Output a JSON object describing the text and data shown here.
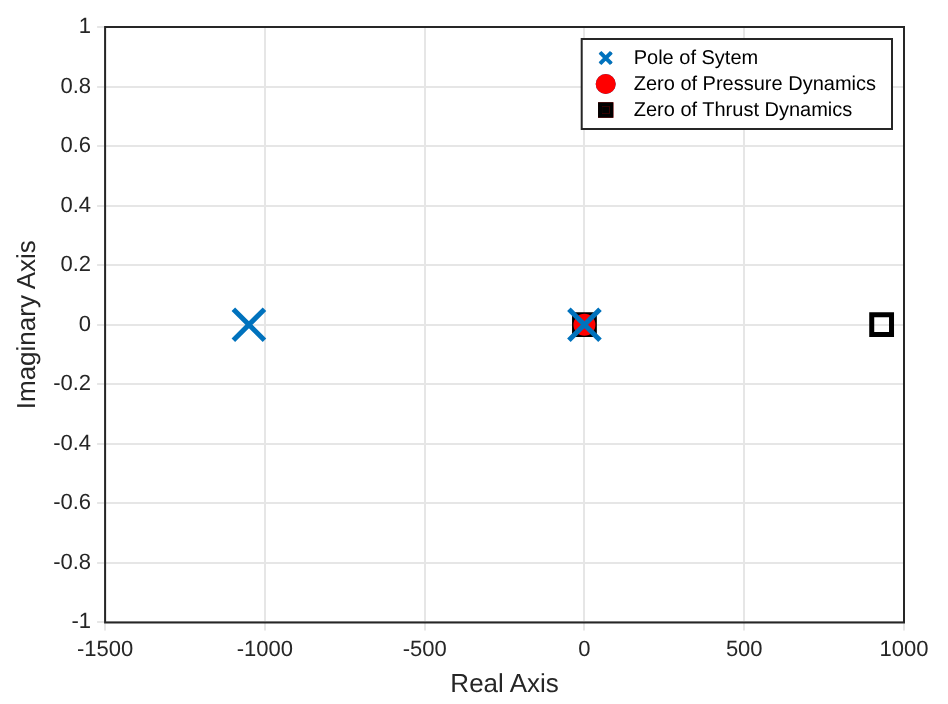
{
  "chart_data": {
    "type": "scatter",
    "xlabel": "Real Axis",
    "ylabel": "Imaginary Axis",
    "xlim": [
      -1500,
      1000
    ],
    "xticks": [
      -1500,
      -1000,
      -500,
      0,
      500,
      1000
    ],
    "ylim": [
      -1,
      1
    ],
    "yticks": [
      -1,
      -0.8,
      -0.6,
      -0.4,
      -0.2,
      0,
      0.2,
      0.4,
      0.6,
      0.8,
      1
    ],
    "grid": true,
    "legend": "top right",
    "series": [
      {
        "name": "Pole of Sytem",
        "color": "#0072bd",
        "marker": "cross",
        "x": [
          -1050,
          0
        ],
        "values": [
          0,
          0
        ]
      },
      {
        "name": "Zero of Pressure Dynamics",
        "color": "#ff0000",
        "marker": "circle",
        "x": [
          0
        ],
        "values": [
          0
        ]
      },
      {
        "name": "Zero of Thrust Dynamics",
        "color": "#000000",
        "marker": "square",
        "x": [
          0,
          930
        ],
        "values": [
          0,
          0
        ]
      }
    ]
  }
}
